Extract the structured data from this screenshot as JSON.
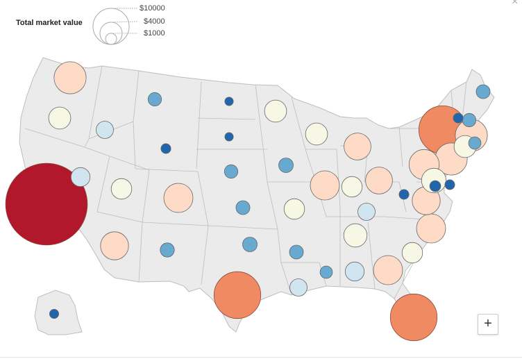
{
  "legend": {
    "title": "Total market value",
    "labels": [
      "$10000",
      "$4000",
      "$1000"
    ]
  },
  "zoom": {
    "plus_label": "+"
  },
  "close": {
    "label": "×"
  },
  "colors": {
    "land": "#ebebeb",
    "border": "#bdbdbd",
    "bubble_scale": [
      "#b2182b",
      "#ef8a62",
      "#fddbc7",
      "#f7f7e6",
      "#d1e5f0",
      "#67a9cf",
      "#2166ac"
    ]
  },
  "bubbles": [
    {
      "state": "CA",
      "value": 11000,
      "color_level": 0
    },
    {
      "state": "TX",
      "value": 3600,
      "color_level": 1
    },
    {
      "state": "FL",
      "value": 3600,
      "color_level": 1
    },
    {
      "state": "NY",
      "value": 3800,
      "color_level": 1
    },
    {
      "state": "WA",
      "value": 1700,
      "color_level": 2
    },
    {
      "state": "MA",
      "value": 1700,
      "color_level": 2
    },
    {
      "state": "NJ",
      "value": 1700,
      "color_level": 2
    },
    {
      "state": "PA",
      "value": 1500,
      "color_level": 2
    },
    {
      "state": "IL",
      "value": 1400,
      "color_level": 2
    },
    {
      "state": "CO",
      "value": 1400,
      "color_level": 2
    },
    {
      "state": "GA",
      "value": 1400,
      "color_level": 2
    },
    {
      "state": "NC",
      "value": 1400,
      "color_level": 2
    },
    {
      "state": "AZ",
      "value": 1300,
      "color_level": 2
    },
    {
      "state": "VA",
      "value": 1300,
      "color_level": 2
    },
    {
      "state": "OH",
      "value": 1200,
      "color_level": 2
    },
    {
      "state": "MI",
      "value": 1200,
      "color_level": 2
    },
    {
      "state": "OR",
      "value": 800,
      "color_level": 3
    },
    {
      "state": "MN",
      "value": 800,
      "color_level": 3
    },
    {
      "state": "WI",
      "value": 800,
      "color_level": 3
    },
    {
      "state": "UT",
      "value": 700,
      "color_level": 3
    },
    {
      "state": "IN",
      "value": 700,
      "color_level": 3
    },
    {
      "state": "MO",
      "value": 700,
      "color_level": 3
    },
    {
      "state": "TN",
      "value": 900,
      "color_level": 3
    },
    {
      "state": "SC",
      "value": 700,
      "color_level": 3
    },
    {
      "state": "MD",
      "value": 1000,
      "color_level": 3
    },
    {
      "state": "CT",
      "value": 800,
      "color_level": 3
    },
    {
      "state": "NV",
      "value": 600,
      "color_level": 4
    },
    {
      "state": "ID",
      "value": 500,
      "color_level": 4
    },
    {
      "state": "KY",
      "value": 500,
      "color_level": 4
    },
    {
      "state": "AL",
      "value": 600,
      "color_level": 4
    },
    {
      "state": "LA",
      "value": 500,
      "color_level": 4
    },
    {
      "state": "MT",
      "value": 300,
      "color_level": 5
    },
    {
      "state": "NE",
      "value": 300,
      "color_level": 5
    },
    {
      "state": "KS",
      "value": 320,
      "color_level": 5
    },
    {
      "state": "OK",
      "value": 350,
      "color_level": 5
    },
    {
      "state": "IA",
      "value": 350,
      "color_level": 5
    },
    {
      "state": "AR",
      "value": 320,
      "color_level": 5
    },
    {
      "state": "NM",
      "value": 330,
      "color_level": 5
    },
    {
      "state": "MS",
      "value": 250,
      "color_level": 5
    },
    {
      "state": "ME",
      "value": 320,
      "color_level": 5
    },
    {
      "state": "NH",
      "value": 300,
      "color_level": 5
    },
    {
      "state": "RI",
      "value": 250,
      "color_level": 5
    },
    {
      "state": "ND",
      "value": 120,
      "color_level": 6
    },
    {
      "state": "SD",
      "value": 120,
      "color_level": 6
    },
    {
      "state": "WY",
      "value": 160,
      "color_level": 6
    },
    {
      "state": "WV",
      "value": 160,
      "color_level": 6
    },
    {
      "state": "VT",
      "value": 160,
      "color_level": 6
    },
    {
      "state": "DE",
      "value": 160,
      "color_level": 6
    },
    {
      "state": "DC",
      "value": 200,
      "color_level": 6
    },
    {
      "state": "AK",
      "value": 140,
      "color_level": 6
    }
  ]
}
